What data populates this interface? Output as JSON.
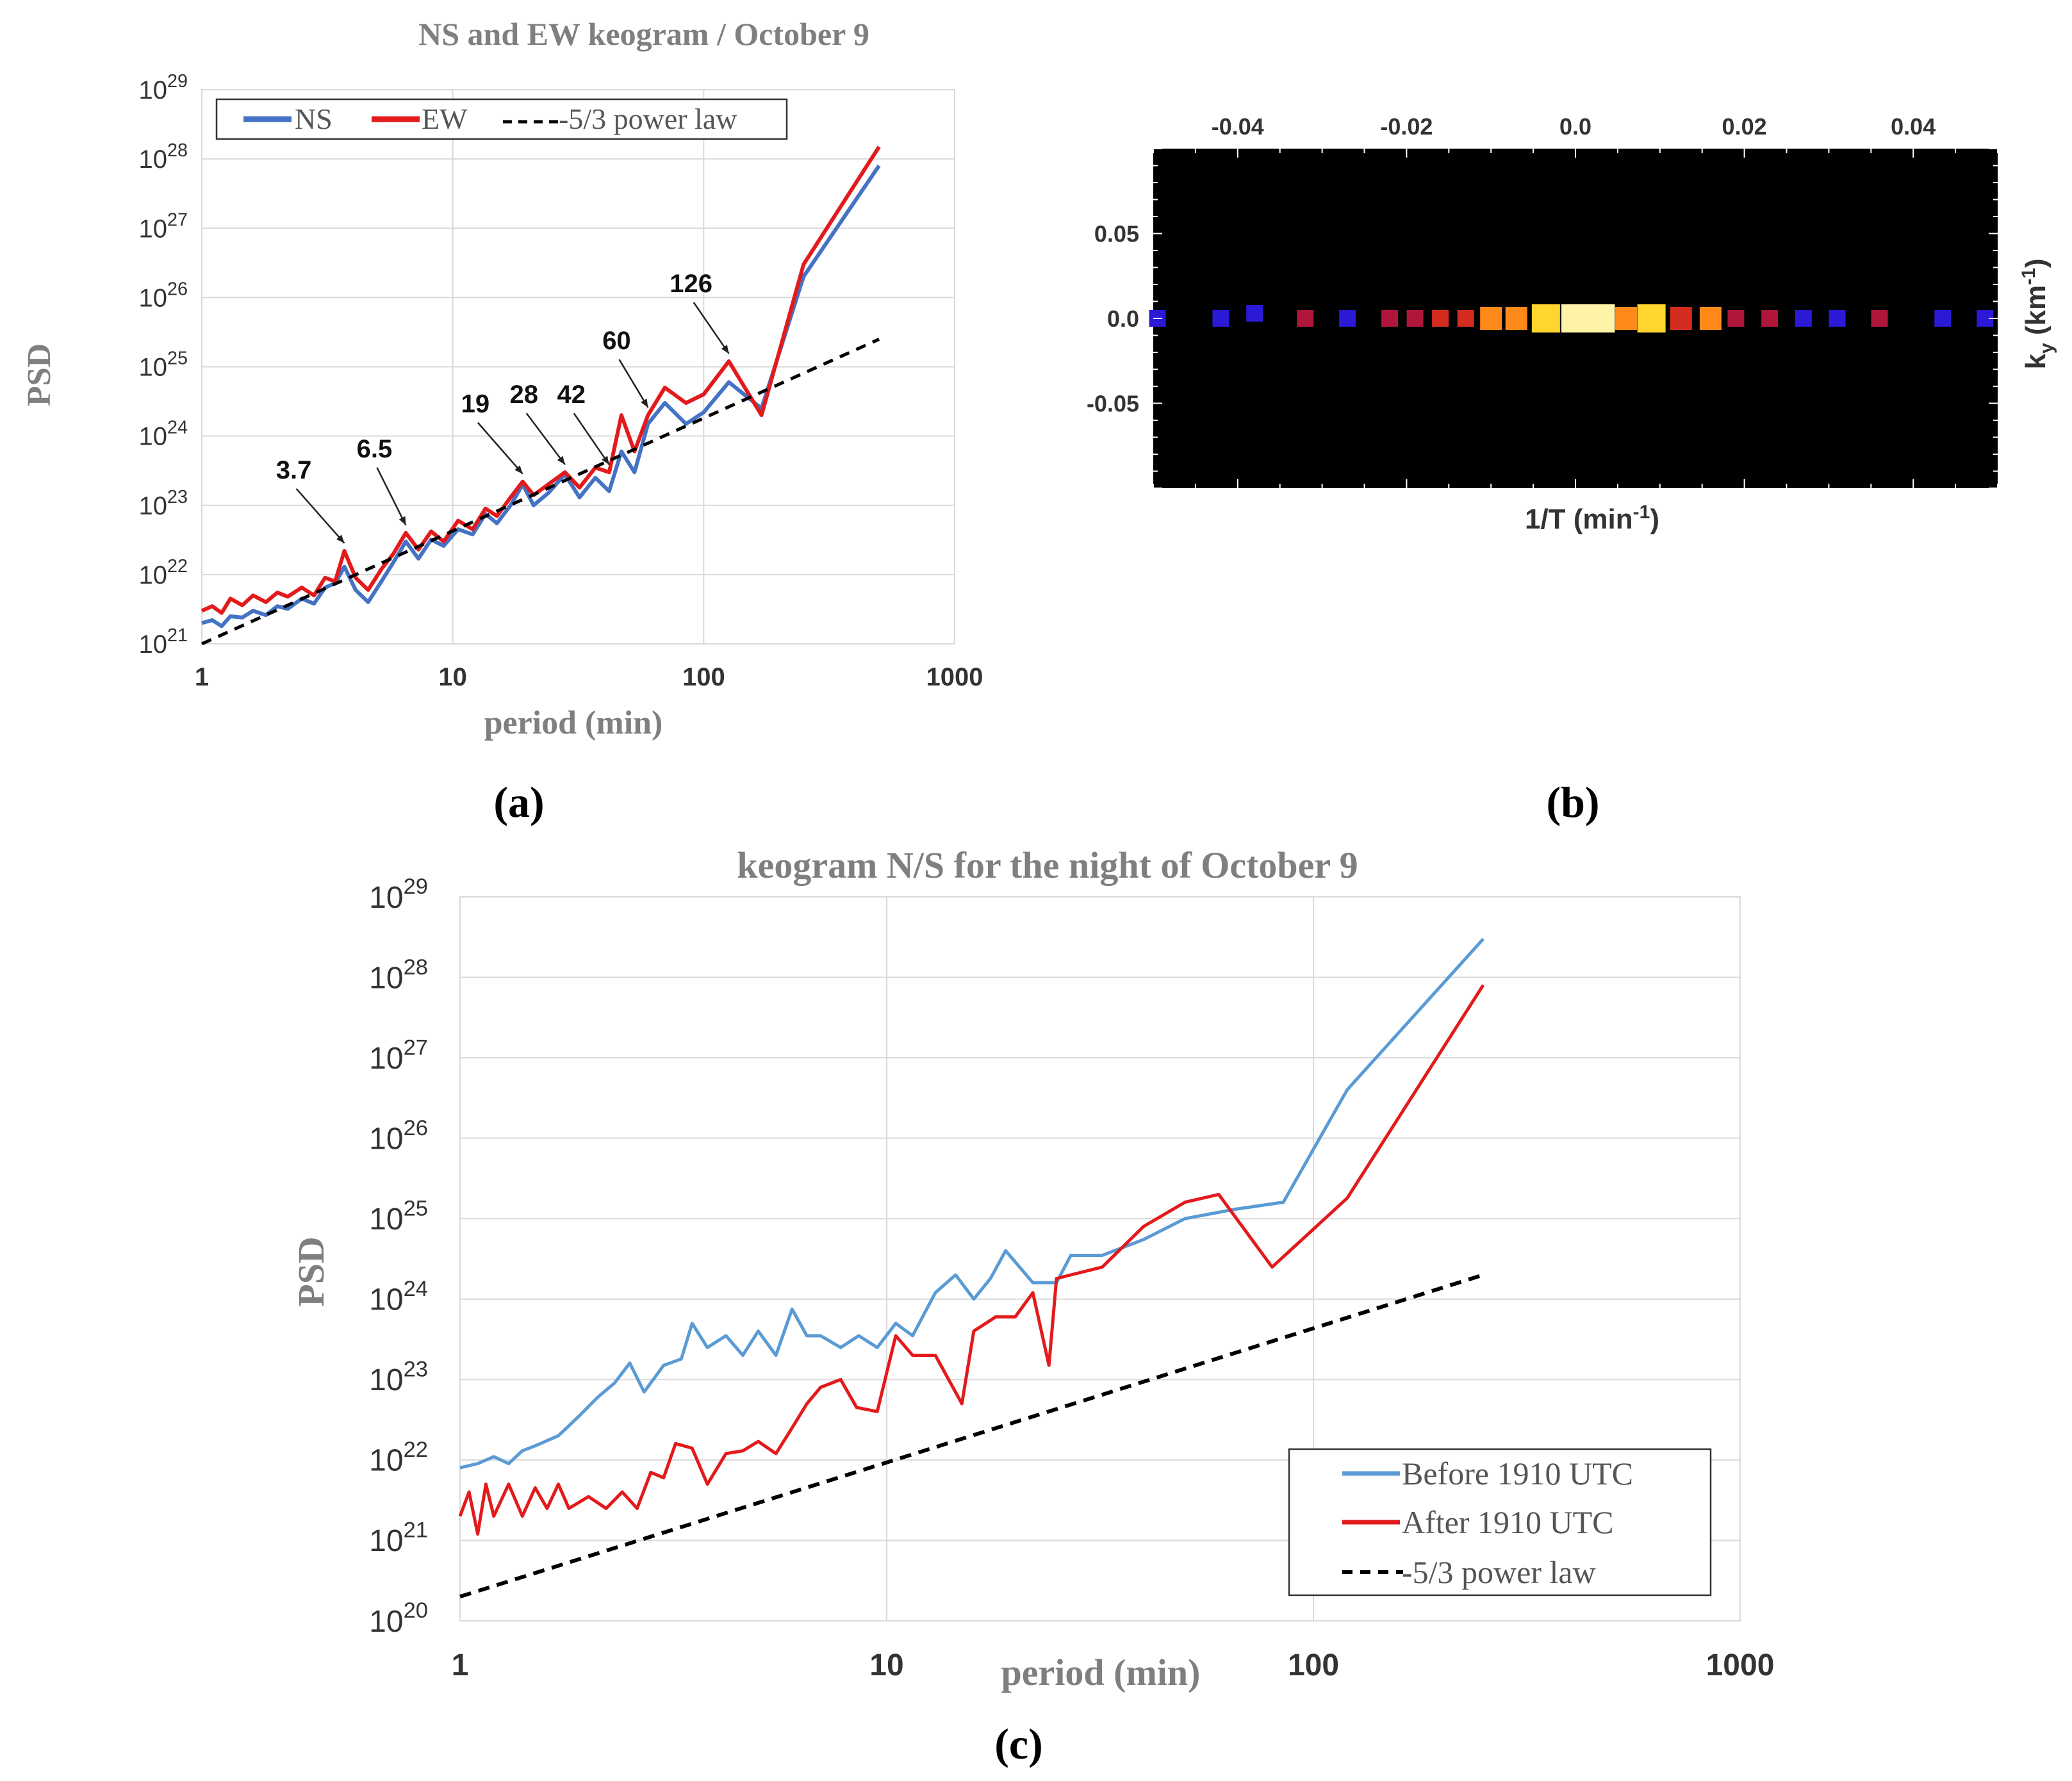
{
  "chart_data": [
    {
      "type": "line",
      "panel_label": "(a)",
      "title": "NS and EW keogram / October 9",
      "xlabel": "period (min)",
      "ylabel": "PSD",
      "xscale": "log",
      "yscale": "log",
      "xlim": [
        1,
        1000
      ],
      "ylim": [
        1e+21,
        1e+29
      ],
      "x_ticks": [
        "1",
        "10",
        "100",
        "1000"
      ],
      "y_ticks": [
        "10^21",
        "10^22",
        "10^23",
        "10^24",
        "10^25",
        "10^26",
        "10^27",
        "10^28",
        "10^29"
      ],
      "grid": true,
      "legend_position": "top-left",
      "series": [
        {
          "name": "NS",
          "color": "#4472c4",
          "x": [
            1,
            1.1,
            1.2,
            1.3,
            1.45,
            1.6,
            1.8,
            2.0,
            2.2,
            2.5,
            2.8,
            3.1,
            3.4,
            3.7,
            4.1,
            4.6,
            5.2,
            5.8,
            6.5,
            7.3,
            8.2,
            9.2,
            10.5,
            12,
            13.5,
            15,
            17,
            19,
            21,
            24,
            28,
            32,
            37,
            42,
            47,
            53,
            60,
            70,
            85,
            100,
            126,
            170,
            250,
            500
          ],
          "y": [
            2e+21,
            2.2e+21,
            1.8e+21,
            2.5e+21,
            2.4e+21,
            3e+21,
            2.6e+21,
            3.5e+21,
            3.2e+21,
            4.5e+21,
            3.8e+21,
            6.5e+21,
            7.5e+21,
            1.3e+22,
            6e+21,
            4e+21,
            8e+21,
            1.5e+22,
            3e+22,
            1.7e+22,
            3.2e+22,
            2.6e+22,
            4.5e+22,
            3.8e+22,
            7.5e+22,
            5.5e+22,
            1e+23,
            2e+23,
            1e+23,
            1.5e+23,
            2.8e+23,
            1.3e+23,
            2.5e+23,
            1.6e+23,
            6e+23,
            3e+23,
            1.5e+24,
            3e+24,
            1.5e+24,
            2.2e+24,
            6e+24,
            2.5e+24,
            2e+26,
            8e+27
          ]
        },
        {
          "name": "EW",
          "color": "#e31a1c",
          "x": [
            1,
            1.1,
            1.2,
            1.3,
            1.45,
            1.6,
            1.8,
            2.0,
            2.2,
            2.5,
            2.8,
            3.1,
            3.4,
            3.7,
            4.1,
            4.6,
            5.2,
            5.8,
            6.5,
            7.3,
            8.2,
            9.2,
            10.5,
            12,
            13.5,
            15,
            17,
            19,
            21,
            24,
            28,
            32,
            37,
            42,
            47,
            53,
            60,
            70,
            85,
            100,
            126,
            170,
            250,
            500
          ],
          "y": [
            3e+21,
            3.5e+21,
            2.8e+21,
            4.5e+21,
            3.6e+21,
            5e+21,
            4e+21,
            5.5e+21,
            4.8e+21,
            6.5e+21,
            5e+21,
            9e+21,
            8e+21,
            2.2e+22,
            9e+21,
            6e+21,
            1.2e+22,
            2e+22,
            4e+22,
            2.3e+22,
            4.2e+22,
            3e+22,
            6e+22,
            4.5e+22,
            9e+22,
            7e+22,
            1.3e+23,
            2.2e+23,
            1.4e+23,
            2e+23,
            3e+23,
            1.8e+23,
            3.5e+23,
            3e+23,
            2e+24,
            6e+23,
            2e+24,
            5e+24,
            3e+24,
            4e+24,
            1.2e+25,
            2e+24,
            3e+26,
            1.5e+28
          ]
        },
        {
          "name": "-5/3 power law",
          "color": "#000000",
          "dash": true,
          "x": [
            1,
            500
          ],
          "y": [
            1e+21,
            2.5e+25
          ]
        }
      ],
      "annotations": [
        {
          "text": "3.7",
          "x": 3.7
        },
        {
          "text": "6.5",
          "x": 6.5
        },
        {
          "text": "19",
          "x": 19
        },
        {
          "text": "28",
          "x": 28
        },
        {
          "text": "42",
          "x": 42
        },
        {
          "text": "60",
          "x": 60
        },
        {
          "text": "126",
          "x": 126
        }
      ]
    },
    {
      "type": "heatmap",
      "panel_label": "(b)",
      "xlabel": "1/T  (min",
      "xlabel_sup": "-1",
      "xlabel_close": ")",
      "ylabel": "k",
      "ylabel_sub": "y",
      "ylabel_unit": " (km",
      "ylabel_sup": "-1",
      "ylabel_close": ")",
      "xlim": [
        -0.05,
        0.05
      ],
      "ylim": [
        -0.1,
        0.1
      ],
      "x_ticks": [
        "-0.04",
        "-0.02",
        "0.0",
        "0.02",
        "0.04"
      ],
      "x_tick_values": [
        -0.04,
        -0.02,
        0.0,
        0.02,
        0.04
      ],
      "y_ticks": [
        "0.05",
        "0.0",
        "-0.05"
      ],
      "y_tick_values": [
        0.05,
        0.0,
        -0.05
      ],
      "cells": [
        {
          "x": -0.0495,
          "y": 0.0,
          "v": 0.3
        },
        {
          "x": -0.042,
          "y": 0.0,
          "v": 0.25
        },
        {
          "x": -0.038,
          "y": 0.003,
          "v": 0.2
        },
        {
          "x": -0.032,
          "y": 0.0,
          "v": 0.45
        },
        {
          "x": -0.027,
          "y": 0.0,
          "v": 0.3
        },
        {
          "x": -0.022,
          "y": 0.0,
          "v": 0.35
        },
        {
          "x": -0.019,
          "y": 0.0,
          "v": 0.4
        },
        {
          "x": -0.016,
          "y": 0.0,
          "v": 0.5
        },
        {
          "x": -0.013,
          "y": 0.0,
          "v": 0.55
        },
        {
          "x": -0.01,
          "y": 0.0,
          "v": 0.7
        },
        {
          "x": -0.007,
          "y": 0.0,
          "v": 0.75
        },
        {
          "x": -0.0035,
          "y": 0.0,
          "v": 0.9
        },
        {
          "x": 0.0,
          "y": 0.0,
          "v": 1.0
        },
        {
          "x": 0.003,
          "y": 0.0,
          "v": 1.0
        },
        {
          "x": 0.006,
          "y": 0.0,
          "v": 0.7
        },
        {
          "x": 0.009,
          "y": 0.0,
          "v": 0.9
        },
        {
          "x": 0.0125,
          "y": 0.0,
          "v": 0.6
        },
        {
          "x": 0.016,
          "y": 0.0,
          "v": 0.65
        },
        {
          "x": 0.019,
          "y": 0.0,
          "v": 0.45
        },
        {
          "x": 0.023,
          "y": 0.0,
          "v": 0.4
        },
        {
          "x": 0.027,
          "y": 0.0,
          "v": 0.3
        },
        {
          "x": 0.031,
          "y": 0.0,
          "v": 0.3
        },
        {
          "x": 0.036,
          "y": 0.0,
          "v": 0.45
        },
        {
          "x": 0.0435,
          "y": 0.0,
          "v": 0.25
        },
        {
          "x": 0.0485,
          "y": 0.0,
          "v": 0.3
        }
      ]
    },
    {
      "type": "line",
      "panel_label": "(c)",
      "title": "keogram N/S for the night of October 9",
      "xlabel": "period (min)",
      "ylabel": "PSD",
      "xscale": "log",
      "yscale": "log",
      "xlim": [
        1,
        1000
      ],
      "ylim": [
        1e+20,
        1e+29
      ],
      "x_ticks": [
        "1",
        "10",
        "100",
        "1000"
      ],
      "y_ticks": [
        "10^20",
        "10^21",
        "10^22",
        "10^23",
        "10^24",
        "10^25",
        "10^26",
        "10^27",
        "10^28",
        "10^29"
      ],
      "grid": true,
      "legend_position": "bottom-right",
      "series": [
        {
          "name": "Before 1910 UTC",
          "color": "#5b9bd5",
          "x": [
            1,
            1.1,
            1.2,
            1.3,
            1.4,
            1.5,
            1.7,
            1.9,
            2.1,
            2.3,
            2.5,
            2.7,
            3.0,
            3.3,
            3.5,
            3.8,
            4.2,
            4.6,
            5.0,
            5.5,
            6.0,
            6.5,
            7.0,
            7.8,
            8.6,
            9.5,
            10.5,
            11.5,
            13,
            14.5,
            16,
            17.5,
            19,
            22,
            25,
            27,
            32,
            40,
            50,
            65,
            85,
            120,
            250
          ],
          "y": [
            8e+21,
            9e+21,
            1.1e+22,
            9e+21,
            1.3e+22,
            1.5e+22,
            2e+22,
            3.5e+22,
            6e+22,
            9e+22,
            1.6e+23,
            7e+22,
            1.5e+23,
            1.8e+23,
            5e+23,
            2.5e+23,
            3.5e+23,
            2e+23,
            4e+23,
            2e+23,
            7.5e+23,
            3.5e+23,
            3.5e+23,
            2.5e+23,
            3.5e+23,
            2.5e+23,
            5e+23,
            3.5e+23,
            1.2e+24,
            2e+24,
            1e+24,
            1.8e+24,
            4e+24,
            1.6e+24,
            1.6e+24,
            3.5e+24,
            3.5e+24,
            5.5e+24,
            1e+25,
            1.3e+25,
            1.6e+25,
            4e+26,
            3e+28
          ]
        },
        {
          "name": "After 1910 UTC",
          "color": "#e31a1c",
          "x": [
            1,
            1.05,
            1.1,
            1.15,
            1.2,
            1.3,
            1.4,
            1.5,
            1.6,
            1.7,
            1.8,
            2.0,
            2.2,
            2.4,
            2.6,
            2.8,
            3.0,
            3.2,
            3.5,
            3.8,
            4.2,
            4.6,
            5.0,
            5.5,
            6.0,
            6.5,
            7.0,
            7.8,
            8.5,
            9.5,
            10.5,
            11.5,
            13,
            15,
            16,
            18,
            20,
            22,
            24,
            25,
            27,
            32,
            40,
            50,
            60,
            80,
            120,
            250
          ],
          "y": [
            2e+21,
            4e+21,
            1.2e+21,
            5e+21,
            2e+21,
            5e+21,
            2e+21,
            4.5e+21,
            2.5e+21,
            5e+21,
            2.5e+21,
            3.5e+21,
            2.5e+21,
            4e+21,
            2.5e+21,
            7e+21,
            6e+21,
            1.6e+22,
            1.4e+22,
            5e+21,
            1.2e+22,
            1.3e+22,
            1.7e+22,
            1.2e+22,
            2.5e+22,
            5e+22,
            8e+22,
            1e+23,
            4.5e+22,
            4e+22,
            3.5e+23,
            2e+23,
            2e+23,
            5e+22,
            4e+23,
            6e+23,
            6e+23,
            1.2e+24,
            1.5e+23,
            1.8e+24,
            2e+24,
            2.5e+24,
            8e+24,
            1.6e+25,
            2e+25,
            2.5e+24,
            1.8e+25,
            8e+27
          ]
        },
        {
          "name": "-5/3 power law",
          "color": "#000000",
          "dash": true,
          "x": [
            1,
            250
          ],
          "y": [
            2e+20,
            2e+24
          ]
        }
      ]
    }
  ]
}
